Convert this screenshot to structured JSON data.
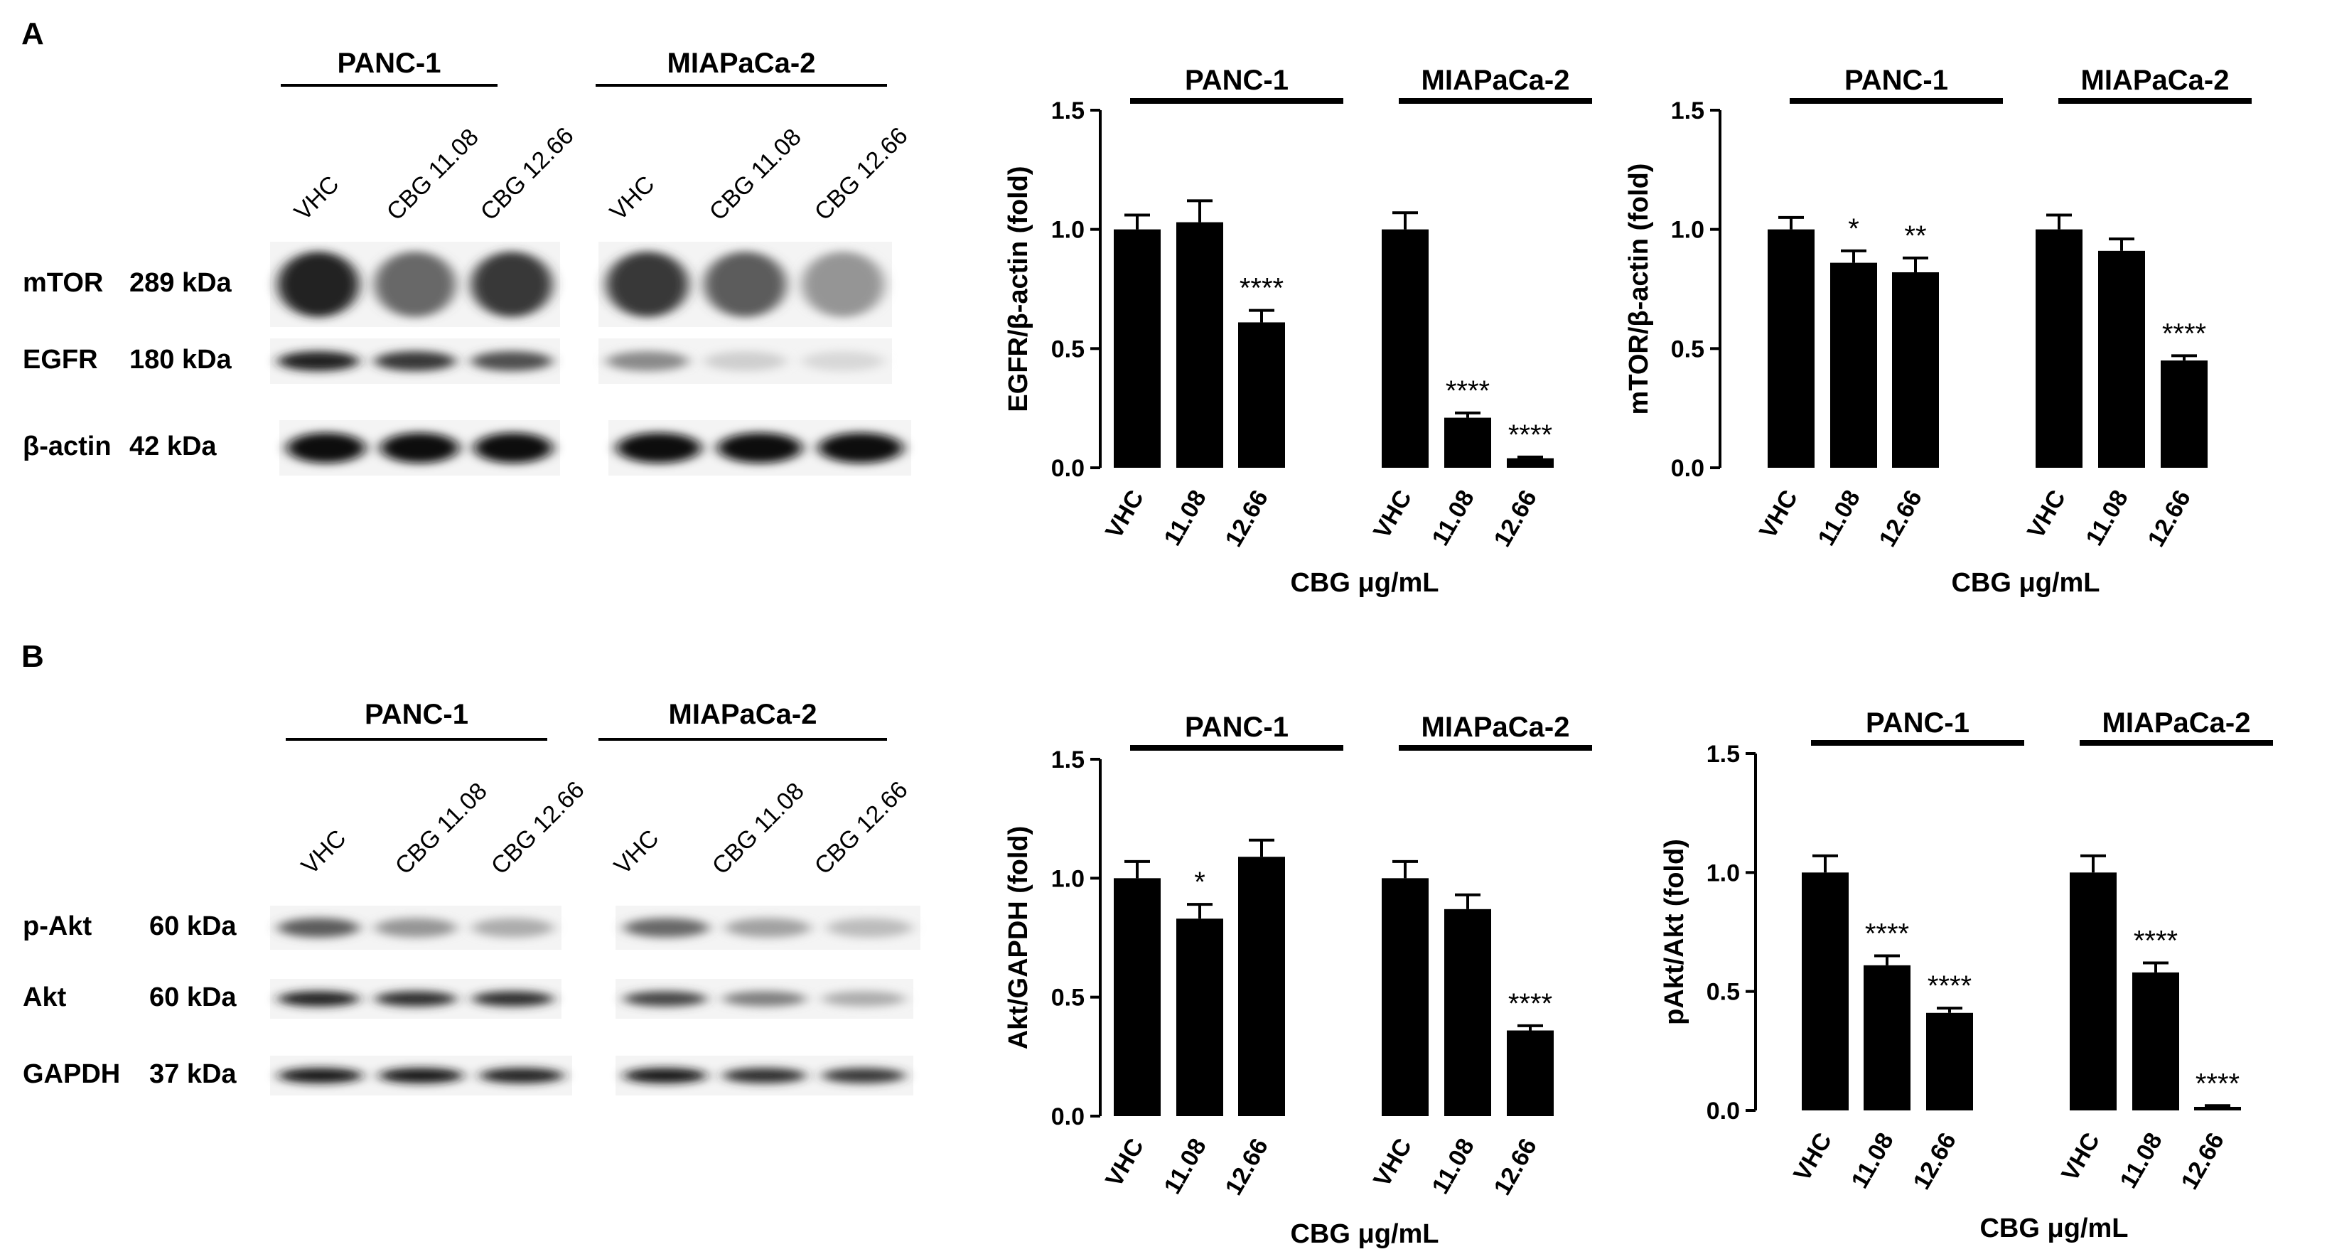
{
  "panels": [
    {
      "letter": "A",
      "blot": {
        "groups": [
          "PANC-1",
          "MIAPaCa-2"
        ],
        "lanes": [
          "VHC",
          "CBG 11.08",
          "CBG 12.66"
        ],
        "rows": [
          {
            "name": "mTOR",
            "kda": "289 kDa",
            "intensities": [
              0.85,
              0.55,
              0.75,
              0.75,
              0.6,
              0.35
            ],
            "thickness": 0.7
          },
          {
            "name": "EGFR",
            "kda": "180 kDa",
            "intensities": [
              0.85,
              0.75,
              0.65,
              0.4,
              0.1,
              0.06
            ],
            "thickness": 0.4
          },
          {
            "name": "β-actin",
            "kda": "42 kDa",
            "intensities": [
              0.95,
              0.95,
              0.95,
              0.95,
              0.95,
              0.95
            ],
            "thickness": 0.5
          }
        ]
      }
    },
    {
      "letter": "B",
      "blot": {
        "groups": [
          "PANC-1",
          "MIAPaCa-2"
        ],
        "lanes": [
          "VHC",
          "CBG 11.08",
          "CBG 12.66"
        ],
        "rows": [
          {
            "name": "p-Akt",
            "kda": "60 kDa",
            "intensities": [
              0.6,
              0.35,
              0.25,
              0.55,
              0.3,
              0.18
            ],
            "thickness": 0.4
          },
          {
            "name": "Akt",
            "kda": "60 kDa",
            "intensities": [
              0.85,
              0.8,
              0.8,
              0.7,
              0.45,
              0.25
            ],
            "thickness": 0.35
          },
          {
            "name": "GAPDH",
            "kda": "37 kDa",
            "intensities": [
              0.9,
              0.9,
              0.85,
              0.9,
              0.8,
              0.75
            ],
            "thickness": 0.35
          }
        ]
      }
    }
  ],
  "chart_data": [
    {
      "type": "bar",
      "ylabel": "EGFR/β-actin (fold)",
      "xlabel": "CBG μg/mL",
      "ylim": [
        0,
        1.5
      ],
      "yticks": [
        "0.0",
        "0.5",
        "1.0",
        "1.5"
      ],
      "groups": [
        "PANC-1",
        "MIAPaCa-2"
      ],
      "categories": [
        "VHC",
        "11.08",
        "12.66",
        "VHC",
        "11.08",
        "12.66"
      ],
      "values": [
        1.0,
        1.03,
        0.61,
        1.0,
        0.21,
        0.04
      ],
      "errors": [
        0.06,
        0.09,
        0.05,
        0.07,
        0.02,
        0.005
      ],
      "annotations": [
        "",
        "",
        "****",
        "",
        "****",
        "****"
      ]
    },
    {
      "type": "bar",
      "ylabel": "mTOR/β-actin (fold)",
      "xlabel": "CBG μg/mL",
      "ylim": [
        0,
        1.5
      ],
      "yticks": [
        "0.0",
        "0.5",
        "1.0",
        "1.5"
      ],
      "groups": [
        "PANC-1",
        "MIAPaCa-2"
      ],
      "categories": [
        "VHC",
        "11.08",
        "12.66",
        "VHC",
        "11.08",
        "12.66"
      ],
      "values": [
        1.0,
        0.86,
        0.82,
        1.0,
        0.91,
        0.45
      ],
      "errors": [
        0.05,
        0.05,
        0.06,
        0.06,
        0.05,
        0.02
      ],
      "annotations": [
        "",
        "*",
        "**",
        "",
        "",
        "****"
      ]
    },
    {
      "type": "bar",
      "ylabel": "Akt/GAPDH (fold)",
      "xlabel": "CBG μg/mL",
      "ylim": [
        0,
        1.5
      ],
      "yticks": [
        "0.0",
        "0.5",
        "1.0",
        "1.5"
      ],
      "groups": [
        "PANC-1",
        "MIAPaCa-2"
      ],
      "categories": [
        "VHC",
        "11.08",
        "12.66",
        "VHC",
        "11.08",
        "12.66"
      ],
      "values": [
        1.0,
        0.83,
        1.09,
        1.0,
        0.87,
        0.36
      ],
      "errors": [
        0.07,
        0.06,
        0.07,
        0.07,
        0.06,
        0.02
      ],
      "annotations": [
        "",
        "*",
        "",
        "",
        "",
        "****"
      ]
    },
    {
      "type": "bar",
      "ylabel": "pAkt/Akt (fold)",
      "xlabel": "CBG μg/mL",
      "ylim": [
        0,
        1.5
      ],
      "yticks": [
        "0.0",
        "0.5",
        "1.0",
        "1.5"
      ],
      "groups": [
        "PANC-1",
        "MIAPaCa-2"
      ],
      "categories": [
        "VHC",
        "11.08",
        "12.66",
        "VHC",
        "11.08",
        "12.66"
      ],
      "values": [
        1.0,
        0.61,
        0.41,
        1.0,
        0.58,
        0.015
      ],
      "errors": [
        0.07,
        0.04,
        0.02,
        0.07,
        0.04,
        0.005
      ],
      "annotations": [
        "",
        "****",
        "****",
        "",
        "****",
        "****"
      ]
    }
  ]
}
